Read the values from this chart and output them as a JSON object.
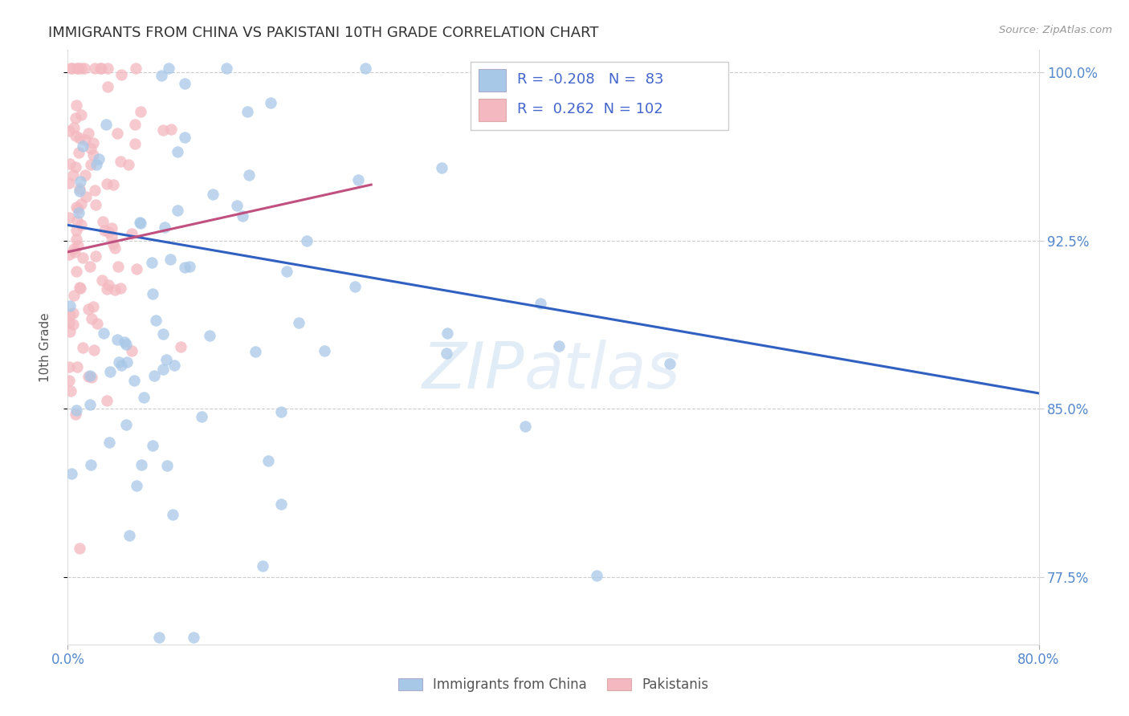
{
  "title": "IMMIGRANTS FROM CHINA VS PAKISTANI 10TH GRADE CORRELATION CHART",
  "source_text": "Source: ZipAtlas.com",
  "ylabel": "10th Grade",
  "x_min": 0.0,
  "x_max": 0.8,
  "y_min": 0.745,
  "y_max": 1.01,
  "legend_label_1": "Immigrants from China",
  "legend_label_2": "Pakistanis",
  "R1": -0.208,
  "N1": 83,
  "R2": 0.262,
  "N2": 102,
  "color_china": "#a8c8e8",
  "color_pakistan": "#f4b8c0",
  "color_china_line": "#3060c0",
  "color_pakistan_line": "#c05080",
  "background_color": "#ffffff",
  "watermark_zip": "ZIP",
  "watermark_atlas": "atlas",
  "yticks": [
    0.775,
    0.85,
    0.925,
    1.0
  ],
  "ytick_labels": [
    "77.5%",
    "85.0%",
    "92.5%",
    "100.0%"
  ],
  "xtick_vals": [
    0.0,
    0.8
  ],
  "xtick_labels": [
    "0.0%",
    "80.0%"
  ],
  "china_line_y0": 0.932,
  "china_line_y1": 0.857,
  "pak_line_y0": 0.92,
  "pak_line_y1": 0.95
}
